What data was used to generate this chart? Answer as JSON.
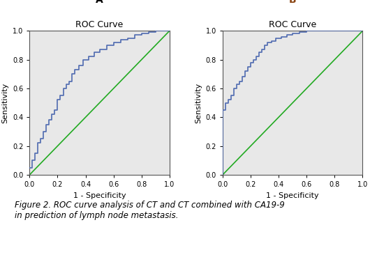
{
  "title_A": "ROC Curve",
  "title_B": "ROC Curve",
  "label_A": "A",
  "label_B": "B",
  "xlabel": "1 - Specificity",
  "ylabel": "Sensitivity",
  "xlim": [
    0.0,
    1.0
  ],
  "ylim": [
    0.0,
    1.0
  ],
  "xticks": [
    0.0,
    0.2,
    0.4,
    0.6,
    0.8,
    1.0
  ],
  "yticks": [
    0.0,
    0.2,
    0.4,
    0.6,
    0.8,
    1.0
  ],
  "bg_color": "#e8e8e8",
  "roc_color": "#4f6ab0",
  "diag_color": "#22aa22",
  "caption": "Figure 2. ROC curve analysis of CT and CT combined with CA19-9\nin prediction of lymph node metastasis.",
  "roc_A_x": [
    0.0,
    0.02,
    0.02,
    0.04,
    0.04,
    0.06,
    0.06,
    0.08,
    0.08,
    0.1,
    0.1,
    0.12,
    0.12,
    0.14,
    0.14,
    0.16,
    0.16,
    0.18,
    0.18,
    0.2,
    0.2,
    0.22,
    0.22,
    0.24,
    0.24,
    0.26,
    0.26,
    0.28,
    0.28,
    0.3,
    0.3,
    0.32,
    0.32,
    0.35,
    0.35,
    0.38,
    0.38,
    0.42,
    0.42,
    0.46,
    0.46,
    0.5,
    0.5,
    0.55,
    0.55,
    0.6,
    0.6,
    0.65,
    0.65,
    0.7,
    0.7,
    0.75,
    0.75,
    0.8,
    0.8,
    0.85,
    0.85,
    0.9,
    0.9,
    0.95,
    0.95,
    1.0
  ],
  "roc_A_y": [
    0.05,
    0.05,
    0.1,
    0.1,
    0.15,
    0.15,
    0.22,
    0.22,
    0.25,
    0.25,
    0.3,
    0.3,
    0.35,
    0.35,
    0.38,
    0.38,
    0.42,
    0.42,
    0.45,
    0.45,
    0.52,
    0.52,
    0.55,
    0.55,
    0.6,
    0.6,
    0.63,
    0.63,
    0.65,
    0.65,
    0.7,
    0.7,
    0.73,
    0.73,
    0.76,
    0.76,
    0.8,
    0.8,
    0.82,
    0.82,
    0.85,
    0.85,
    0.87,
    0.87,
    0.9,
    0.9,
    0.92,
    0.92,
    0.94,
    0.94,
    0.95,
    0.95,
    0.97,
    0.97,
    0.98,
    0.98,
    0.99,
    0.99,
    1.0,
    1.0,
    1.0,
    1.0
  ],
  "roc_B_x": [
    0.0,
    0.0,
    0.0,
    0.02,
    0.02,
    0.04,
    0.04,
    0.06,
    0.06,
    0.08,
    0.08,
    0.1,
    0.1,
    0.12,
    0.12,
    0.14,
    0.14,
    0.16,
    0.16,
    0.18,
    0.18,
    0.2,
    0.2,
    0.22,
    0.22,
    0.24,
    0.24,
    0.26,
    0.26,
    0.28,
    0.28,
    0.3,
    0.3,
    0.32,
    0.32,
    0.35,
    0.35,
    0.38,
    0.38,
    0.42,
    0.42,
    0.46,
    0.46,
    0.5,
    0.5,
    0.55,
    0.55,
    0.6,
    0.6,
    0.65,
    0.65,
    0.7,
    0.7,
    0.75,
    0.75,
    0.8,
    0.8,
    0.85,
    0.85,
    0.9,
    0.9,
    0.95,
    0.95,
    1.0
  ],
  "roc_B_y": [
    0.0,
    0.22,
    0.45,
    0.45,
    0.5,
    0.5,
    0.52,
    0.52,
    0.55,
    0.55,
    0.6,
    0.6,
    0.63,
    0.63,
    0.65,
    0.65,
    0.68,
    0.68,
    0.72,
    0.72,
    0.75,
    0.75,
    0.78,
    0.78,
    0.8,
    0.8,
    0.82,
    0.82,
    0.85,
    0.85,
    0.87,
    0.87,
    0.9,
    0.9,
    0.92,
    0.92,
    0.93,
    0.93,
    0.95,
    0.95,
    0.96,
    0.96,
    0.97,
    0.97,
    0.98,
    0.98,
    0.99,
    0.99,
    1.0,
    1.0,
    1.0,
    1.0,
    1.0,
    1.0,
    1.0,
    1.0,
    1.0,
    1.0,
    1.0,
    1.0,
    1.0,
    1.0,
    1.0,
    1.0
  ]
}
